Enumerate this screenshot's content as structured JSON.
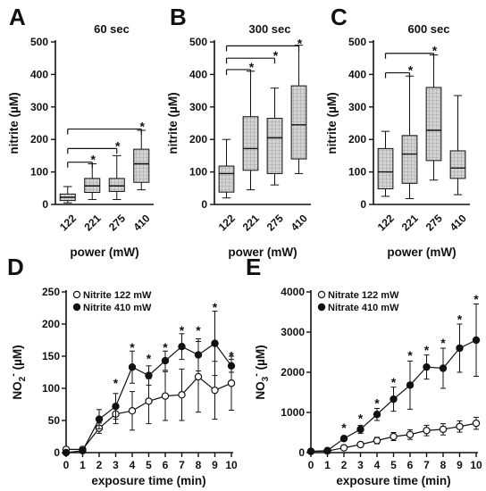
{
  "chart_data": [
    {
      "panel": "A",
      "type": "box",
      "title": "60 sec",
      "xlabel": "power (mW)",
      "ylabel": "nitrite (µM)",
      "ylim": [
        0,
        500
      ],
      "yticks": [
        0,
        100,
        200,
        300,
        400,
        500
      ],
      "categories": [
        "122",
        "221",
        "275",
        "410"
      ],
      "boxes": [
        {
          "min": 5,
          "q1": 12,
          "median": 22,
          "q3": 32,
          "max": 55
        },
        {
          "min": 15,
          "q1": 37,
          "median": 57,
          "q3": 80,
          "max": 125
        },
        {
          "min": 15,
          "q1": 40,
          "median": 57,
          "q3": 80,
          "max": 150
        },
        {
          "min": 45,
          "q1": 68,
          "median": 125,
          "q3": 170,
          "max": 228
        }
      ],
      "comparisons": [
        {
          "from": "122",
          "to": "221",
          "level": 130,
          "mark": "*"
        },
        {
          "from": "122",
          "to": "275",
          "level": 172,
          "mark": "*"
        },
        {
          "from": "122",
          "to": "410",
          "level": 232,
          "mark": "*"
        }
      ]
    },
    {
      "panel": "B",
      "type": "box",
      "title": "300 sec",
      "xlabel": "power (mW)",
      "ylabel": "nitrite (µM)",
      "ylim": [
        0,
        500
      ],
      "yticks": [
        0,
        100,
        200,
        300,
        400,
        500
      ],
      "categories": [
        "122",
        "221",
        "275",
        "410"
      ],
      "boxes": [
        {
          "min": 20,
          "q1": 38,
          "median": 95,
          "q3": 118,
          "max": 200
        },
        {
          "min": 45,
          "q1": 105,
          "median": 172,
          "q3": 270,
          "max": 410
        },
        {
          "min": 60,
          "q1": 95,
          "median": 205,
          "q3": 265,
          "max": 358
        },
        {
          "min": 95,
          "q1": 140,
          "median": 245,
          "q3": 365,
          "max": 490
        }
      ],
      "comparisons": [
        {
          "from": "122",
          "to": "221",
          "level": 415,
          "mark": "*"
        },
        {
          "from": "122",
          "to": "275",
          "level": 450,
          "mark": "*"
        },
        {
          "from": "122",
          "to": "410",
          "level": 488,
          "mark": "*"
        }
      ]
    },
    {
      "panel": "C",
      "type": "box",
      "title": "600 sec",
      "xlabel": "power (mW)",
      "ylabel": "nitrite (µM)",
      "ylim": [
        0,
        500
      ],
      "yticks": [
        0,
        100,
        200,
        300,
        400,
        500
      ],
      "categories": [
        "122",
        "221",
        "275",
        "410"
      ],
      "boxes": [
        {
          "min": 25,
          "q1": 48,
          "median": 100,
          "q3": 172,
          "max": 225
        },
        {
          "min": 18,
          "q1": 65,
          "median": 155,
          "q3": 212,
          "max": 395
        },
        {
          "min": 75,
          "q1": 135,
          "median": 228,
          "q3": 360,
          "max": 460
        },
        {
          "min": 30,
          "q1": 80,
          "median": 112,
          "q3": 165,
          "max": 335
        }
      ],
      "comparisons": [
        {
          "from": "122",
          "to": "221",
          "level": 405,
          "mark": "*"
        },
        {
          "from": "122",
          "to": "275",
          "level": 465,
          "mark": "*"
        }
      ]
    },
    {
      "panel": "D",
      "type": "line",
      "xlabel": "exposure time (min)",
      "ylabel_main": "NO",
      "ylabel_sub": "2",
      "ylabel_sup": "-",
      "ylabel_unit": " (µM)",
      "xlim": [
        0,
        10
      ],
      "ylim": [
        0,
        250
      ],
      "xticks": [
        0,
        1,
        2,
        3,
        4,
        5,
        6,
        7,
        8,
        9,
        10
      ],
      "yticks": [
        0,
        50,
        100,
        150,
        200,
        250
      ],
      "legend_position": "top-left",
      "series": [
        {
          "name": "Nitrite 122 mW",
          "marker": "open-circle",
          "x": [
            0,
            1,
            2,
            3,
            4,
            5,
            6,
            7,
            8,
            9,
            10
          ],
          "y": [
            5,
            5,
            38,
            60,
            65,
            80,
            88,
            90,
            118,
            97,
            108
          ],
          "err": [
            2,
            2,
            8,
            15,
            30,
            35,
            38,
            40,
            55,
            45,
            42
          ]
        },
        {
          "name": "Nitrite 410 mW",
          "marker": "filled-circle",
          "x": [
            0,
            1,
            2,
            3,
            4,
            5,
            6,
            7,
            8,
            9,
            10
          ],
          "y": [
            0,
            3,
            52,
            72,
            133,
            120,
            143,
            165,
            152,
            170,
            135
          ],
          "err": [
            2,
            2,
            15,
            20,
            25,
            15,
            15,
            20,
            25,
            50,
            10
          ]
        }
      ],
      "significance_marks": [
        {
          "x": 3,
          "y": 110
        },
        {
          "x": 4,
          "y": 165
        },
        {
          "x": 5,
          "y": 148
        },
        {
          "x": 6,
          "y": 165
        },
        {
          "x": 7,
          "y": 192
        },
        {
          "x": 8,
          "y": 192
        },
        {
          "x": 9,
          "y": 228
        },
        {
          "x": 10,
          "y": 152
        }
      ]
    },
    {
      "panel": "E",
      "type": "line",
      "xlabel": "exposure time (min)",
      "ylabel_main": "NO",
      "ylabel_sub": "3",
      "ylabel_sup": "-",
      "ylabel_unit": " (µM)",
      "xlim": [
        0,
        10
      ],
      "ylim": [
        0,
        4000
      ],
      "xticks": [
        0,
        1,
        2,
        3,
        4,
        5,
        6,
        7,
        8,
        9,
        10
      ],
      "yticks": [
        0,
        1000,
        2000,
        3000,
        4000
      ],
      "legend_position": "top-left",
      "series": [
        {
          "name": "Nitrate 122 mW",
          "marker": "open-circle",
          "x": [
            0,
            1,
            2,
            3,
            4,
            5,
            6,
            7,
            8,
            9,
            10
          ],
          "y": [
            30,
            40,
            120,
            200,
            300,
            400,
            450,
            550,
            580,
            650,
            730
          ],
          "err": [
            20,
            20,
            40,
            60,
            80,
            100,
            120,
            130,
            140,
            140,
            150
          ]
        },
        {
          "name": "Nitrate 410 mW",
          "marker": "filled-circle",
          "x": [
            0,
            1,
            2,
            3,
            4,
            5,
            6,
            7,
            8,
            9,
            10
          ],
          "y": [
            30,
            50,
            350,
            580,
            950,
            1330,
            1680,
            2130,
            2100,
            2600,
            2800
          ],
          "err": [
            20,
            20,
            60,
            100,
            150,
            300,
            600,
            300,
            500,
            600,
            900
          ]
        }
      ],
      "significance_marks": [
        {
          "x": 2,
          "y": 640
        },
        {
          "x": 3,
          "y": 880
        },
        {
          "x": 4,
          "y": 1260
        },
        {
          "x": 5,
          "y": 1780
        },
        {
          "x": 6,
          "y": 2440
        },
        {
          "x": 7,
          "y": 2580
        },
        {
          "x": 8,
          "y": 2760
        },
        {
          "x": 9,
          "y": 3350
        },
        {
          "x": 10,
          "y": 3850
        }
      ]
    }
  ]
}
